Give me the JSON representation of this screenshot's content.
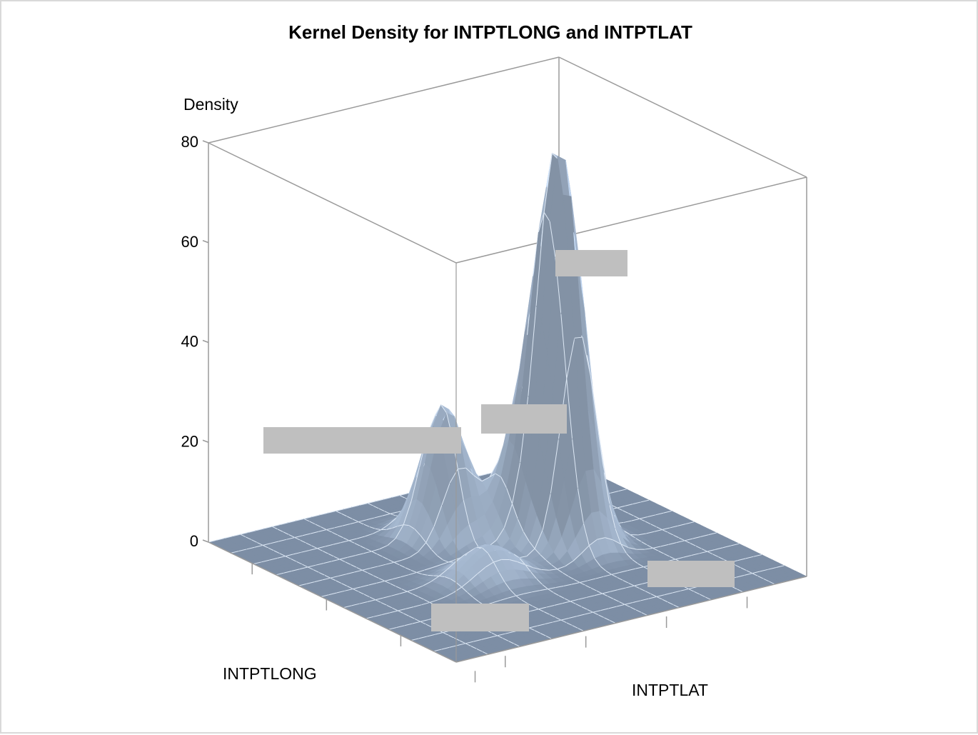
{
  "chart_data": {
    "type": "surface",
    "title": "Kernel Density for INTPTLONG and INTPTLAT",
    "zlabel": "Density",
    "xlabel": "INTPTLONG",
    "ylabel": "INTPTLAT",
    "zlim": [
      0,
      80
    ],
    "z_ticks": [
      "0",
      "20",
      "40",
      "60",
      "80"
    ],
    "peaks": [
      {
        "long_frac": 0.47,
        "lat_frac": 0.67,
        "density": 78
      },
      {
        "long_frac": 0.3,
        "lat_frac": 0.46,
        "density": 27
      },
      {
        "long_frac": 0.4,
        "lat_frac": 0.59,
        "density": 15
      },
      {
        "long_frac": 0.59,
        "lat_frac": 0.38,
        "density": 7
      }
    ],
    "colors": {
      "surface": "#a9bcd4",
      "floor": "#7d8ea5",
      "grid": "#dde8f5",
      "axis": "#9a9a9a",
      "redaction": "#bfbfbf"
    }
  }
}
